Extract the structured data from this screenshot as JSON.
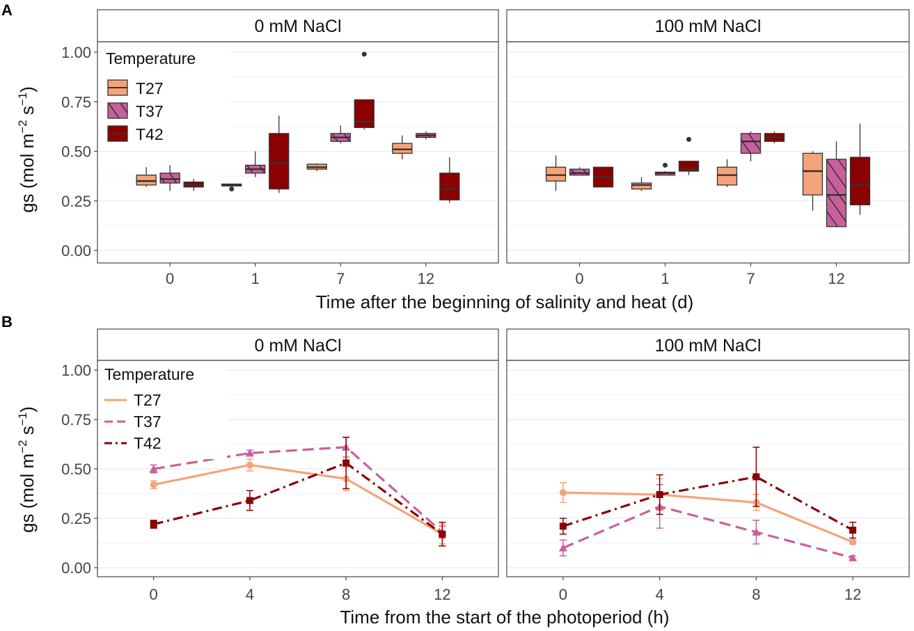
{
  "panels": [
    {
      "label": "A",
      "y_label": "gs",
      "y_unit_pre": " (mol m",
      "y_unit_exp1": "−2",
      "y_unit_mid": " s",
      "y_unit_exp2": "−1",
      "y_unit_post": ")",
      "x_label": "Time after the beginning of salinity and heat (d)",
      "legend_title": "Temperature",
      "legend_items": [
        "T27",
        "T37",
        "T42"
      ]
    },
    {
      "label": "B",
      "y_label": "gs",
      "y_unit_pre": " (mol m",
      "y_unit_exp1": "−2",
      "y_unit_mid": " s",
      "y_unit_exp2": "−1",
      "y_unit_post": ")",
      "x_label": "Time from the start of the photoperiod (h)",
      "legend_title": "Temperature",
      "legend_items": [
        "T27",
        "T37",
        "T42"
      ]
    }
  ],
  "colors": {
    "T27": "#f5a37a",
    "T37": "#c8609c",
    "T42": "#8b0000"
  },
  "chart_data": [
    {
      "panel": "A",
      "type": "boxplot",
      "ylabel": "gs (mol m−2 s−1)",
      "xlabel": "Time after the beginning of salinity and heat (d)",
      "ylim": [
        0,
        1
      ],
      "yticks": [
        "0.00",
        "0.25",
        "0.50",
        "0.75",
        "1.00"
      ],
      "categories": [
        "0",
        "1",
        "7",
        "12"
      ],
      "facets": [
        {
          "title": "0 mM NaCl",
          "groups": [
            {
              "category": "0",
              "series": "T27",
              "min": 0.32,
              "q1": 0.33,
              "median": 0.35,
              "q3": 0.38,
              "max": 0.42,
              "outliers": []
            },
            {
              "category": "0",
              "series": "T37",
              "min": 0.3,
              "q1": 0.34,
              "median": 0.36,
              "q3": 0.39,
              "max": 0.43,
              "outliers": []
            },
            {
              "category": "0",
              "series": "T42",
              "min": 0.3,
              "q1": 0.32,
              "median": 0.33,
              "q3": 0.345,
              "max": 0.36,
              "outliers": []
            },
            {
              "category": "1",
              "series": "T27",
              "min": 0.325,
              "q1": 0.325,
              "median": 0.33,
              "q3": 0.335,
              "max": 0.335,
              "outliers": [
                0.31
              ]
            },
            {
              "category": "1",
              "series": "T37",
              "min": 0.37,
              "q1": 0.39,
              "median": 0.41,
              "q3": 0.43,
              "max": 0.5,
              "outliers": []
            },
            {
              "category": "1",
              "series": "T42",
              "min": 0.29,
              "q1": 0.31,
              "median": 0.44,
              "q3": 0.59,
              "max": 0.68,
              "outliers": []
            },
            {
              "category": "7",
              "series": "T27",
              "min": 0.4,
              "q1": 0.41,
              "median": 0.42,
              "q3": 0.435,
              "max": 0.44,
              "outliers": []
            },
            {
              "category": "7",
              "series": "T37",
              "min": 0.54,
              "q1": 0.55,
              "median": 0.57,
              "q3": 0.59,
              "max": 0.63,
              "outliers": []
            },
            {
              "category": "7",
              "series": "T42",
              "min": 0.61,
              "q1": 0.62,
              "median": 0.65,
              "q3": 0.76,
              "max": 0.76,
              "outliers": [
                0.99
              ]
            },
            {
              "category": "12",
              "series": "T27",
              "min": 0.46,
              "q1": 0.49,
              "median": 0.51,
              "q3": 0.54,
              "max": 0.58,
              "outliers": []
            },
            {
              "category": "12",
              "series": "T37",
              "min": 0.56,
              "q1": 0.57,
              "median": 0.58,
              "q3": 0.59,
              "max": 0.6,
              "outliers": []
            },
            {
              "category": "12",
              "series": "T42",
              "min": 0.24,
              "q1": 0.255,
              "median": 0.31,
              "q3": 0.39,
              "max": 0.47,
              "outliers": []
            }
          ]
        },
        {
          "title": "100 mM NaCl",
          "groups": [
            {
              "category": "0",
              "series": "T27",
              "min": 0.3,
              "q1": 0.35,
              "median": 0.38,
              "q3": 0.42,
              "max": 0.48,
              "outliers": []
            },
            {
              "category": "0",
              "series": "T37",
              "min": 0.38,
              "q1": 0.38,
              "median": 0.39,
              "q3": 0.41,
              "max": 0.42,
              "outliers": []
            },
            {
              "category": "0",
              "series": "T42",
              "min": 0.32,
              "q1": 0.32,
              "median": 0.37,
              "q3": 0.42,
              "max": 0.42,
              "outliers": []
            },
            {
              "category": "1",
              "series": "T27",
              "min": 0.3,
              "q1": 0.31,
              "median": 0.33,
              "q3": 0.34,
              "max": 0.37,
              "outliers": []
            },
            {
              "category": "1",
              "series": "T37",
              "min": 0.38,
              "q1": 0.38,
              "median": 0.39,
              "q3": 0.395,
              "max": 0.4,
              "outliers": [
                0.43
              ]
            },
            {
              "category": "1",
              "series": "T42",
              "min": 0.38,
              "q1": 0.4,
              "median": 0.41,
              "q3": 0.45,
              "max": 0.45,
              "outliers": [
                0.56
              ]
            },
            {
              "category": "7",
              "series": "T27",
              "min": 0.32,
              "q1": 0.33,
              "median": 0.38,
              "q3": 0.42,
              "max": 0.46,
              "outliers": []
            },
            {
              "category": "7",
              "series": "T37",
              "min": 0.45,
              "q1": 0.49,
              "median": 0.55,
              "q3": 0.59,
              "max": 0.6,
              "outliers": []
            },
            {
              "category": "7",
              "series": "T42",
              "min": 0.54,
              "q1": 0.55,
              "median": 0.57,
              "q3": 0.59,
              "max": 0.6,
              "outliers": []
            },
            {
              "category": "12",
              "series": "T27",
              "min": 0.2,
              "q1": 0.28,
              "median": 0.4,
              "q3": 0.49,
              "max": 0.5,
              "outliers": []
            },
            {
              "category": "12",
              "series": "T37",
              "min": 0.12,
              "q1": 0.12,
              "median": 0.28,
              "q3": 0.46,
              "max": 0.55,
              "outliers": []
            },
            {
              "category": "12",
              "series": "T42",
              "min": 0.18,
              "q1": 0.23,
              "median": 0.33,
              "q3": 0.47,
              "max": 0.64,
              "outliers": []
            }
          ]
        }
      ],
      "legend": [
        "T27",
        "T37",
        "T42"
      ]
    },
    {
      "panel": "B",
      "type": "line",
      "ylabel": "gs (mol m−2 s−1)",
      "xlabel": "Time from the start of the photoperiod (h)",
      "ylim": [
        0,
        1
      ],
      "yticks": [
        "0.00",
        "0.25",
        "0.50",
        "0.75",
        "1.00"
      ],
      "x": [
        0,
        4,
        8,
        12
      ],
      "xticks": [
        "0",
        "4",
        "8",
        "12"
      ],
      "facets": [
        {
          "title": "0 mM NaCl",
          "series": [
            {
              "name": "T27",
              "values": [
                0.42,
                0.52,
                0.45,
                0.17
              ],
              "errors": [
                0.02,
                0.03,
                0.06,
                0.05
              ]
            },
            {
              "name": "T37",
              "values": [
                0.5,
                0.58,
                0.61,
                0.18
              ],
              "errors": [
                0.02,
                0.015,
                0.05,
                0.03
              ]
            },
            {
              "name": "T42",
              "values": [
                0.22,
                0.34,
                0.53,
                0.17
              ],
              "errors": [
                0.02,
                0.05,
                0.13,
                0.06
              ]
            }
          ]
        },
        {
          "title": "100 mM NaCl",
          "series": [
            {
              "name": "T27",
              "values": [
                0.38,
                0.37,
                0.33,
                0.13
              ],
              "errors": [
                0.05,
                0.08,
                0.04,
                0.01
              ]
            },
            {
              "name": "T37",
              "values": [
                0.1,
                0.31,
                0.18,
                0.05
              ],
              "errors": [
                0.04,
                0.11,
                0.06,
                0.01
              ]
            },
            {
              "name": "T42",
              "values": [
                0.21,
                0.37,
                0.46,
                0.19
              ],
              "errors": [
                0.04,
                0.1,
                0.15,
                0.04
              ]
            }
          ]
        }
      ],
      "legend": [
        "T27",
        "T37",
        "T42"
      ]
    }
  ]
}
